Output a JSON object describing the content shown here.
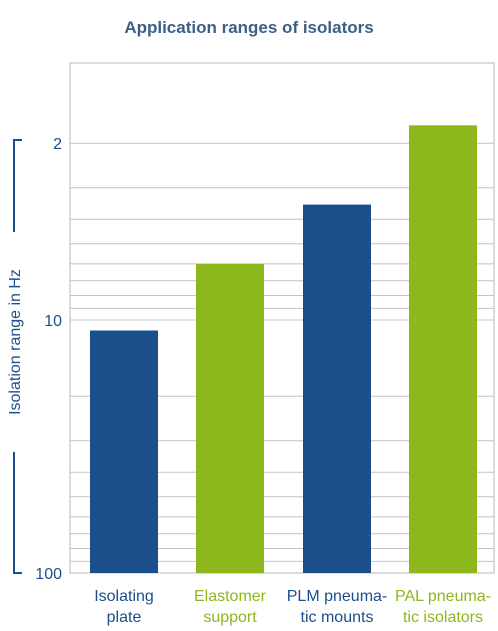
{
  "chart_data": {
    "type": "bar",
    "title": "Application ranges of isolators",
    "ylabel": "Isolation range in Hz",
    "xlabel": "",
    "y_scale": "log",
    "y_inverted": true,
    "ylim": [
      1,
      100
    ],
    "y_ticks": [
      {
        "value": 2,
        "label": "2"
      },
      {
        "value": 10,
        "label": "10"
      },
      {
        "value": 100,
        "label": "100"
      }
    ],
    "categories": [
      {
        "lines": [
          "Isolating",
          "plate"
        ],
        "color": "#1a4f8b"
      },
      {
        "lines": [
          "Elastomer",
          "support"
        ],
        "color": "#8cb81e"
      },
      {
        "lines": [
          "PLM pneuma-",
          "tic mounts"
        ],
        "color": "#1a4f8b"
      },
      {
        "lines": [
          "PAL pneuma-",
          "tic isolators"
        ],
        "color": "#8cb81e"
      }
    ],
    "values": [
      11,
      6,
      3.5,
      1.7
    ],
    "colors": {
      "navy": "#1a4f8b",
      "green": "#8cb81e",
      "grid": "#c4c4c4",
      "title": "#3b5f86"
    }
  }
}
